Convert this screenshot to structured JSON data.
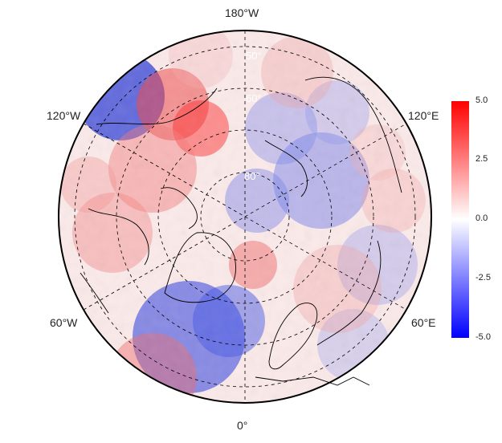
{
  "map": {
    "projection": "north polar stereographic",
    "longitude_labels": {
      "top": "180°W",
      "bottom": "0°",
      "upper_left": "120°W",
      "upper_right": "120°E",
      "lower_left": "60°W",
      "lower_right": "60°E"
    },
    "latitude_labels": [
      "50°",
      "60°",
      "80°"
    ],
    "colors": {
      "high": "#ff0000",
      "mid": "#ffffff",
      "low": "#0000ff",
      "outline": "#000000",
      "lat_label": "#ffffff"
    }
  },
  "colorbar": {
    "ticks": [
      "5.0",
      "2.5",
      "0.0",
      "-2.5",
      "-5.0"
    ],
    "range": [
      -5.0,
      5.0
    ]
  }
}
